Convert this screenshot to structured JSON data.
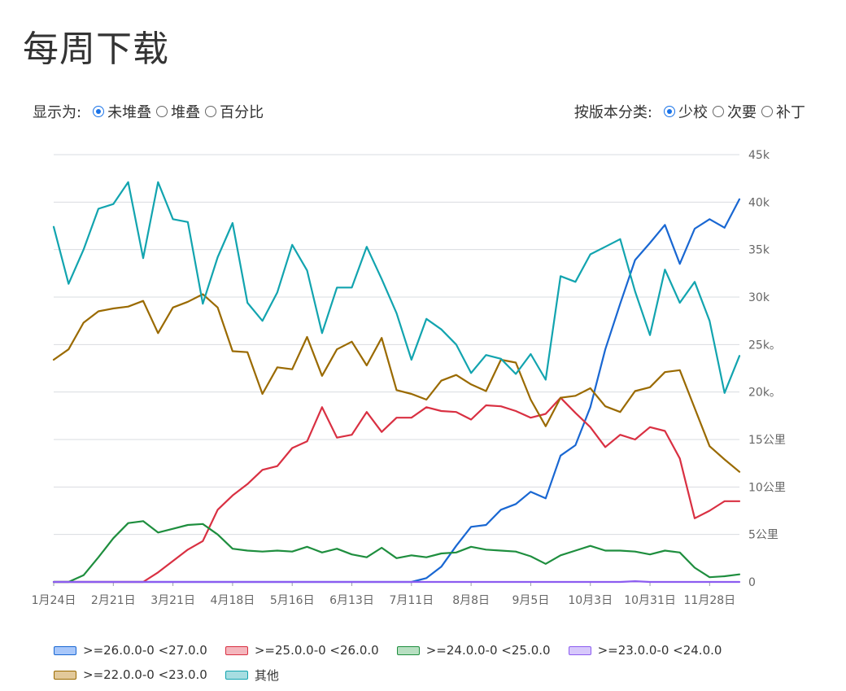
{
  "page": {
    "title": "每周下载"
  },
  "display_controls": {
    "label": "显示为:",
    "options": [
      {
        "label": "未堆叠",
        "checked": true
      },
      {
        "label": "堆叠",
        "checked": false
      },
      {
        "label": "百分比",
        "checked": false
      }
    ]
  },
  "classify_controls": {
    "label": "按版本分类:",
    "options": [
      {
        "label": "少校",
        "checked": true
      },
      {
        "label": "次要",
        "checked": false
      },
      {
        "label": "补丁",
        "checked": false
      }
    ]
  },
  "chart_data": {
    "type": "line",
    "title": "每周下载",
    "xlabel": "",
    "ylabel": "",
    "ylim": [
      0,
      45000
    ],
    "grid": true,
    "legend_position": "bottom",
    "y_tick_labels": [
      "0",
      "5公里",
      "10公里",
      "15公里",
      "20k。",
      "25k。",
      "30k",
      "35k",
      "40k",
      "45k"
    ],
    "x_tick_labels": [
      "1月24日",
      "2月21日",
      "3月21日",
      "4月18日",
      "5月16日",
      "6月13日",
      "7月11日",
      "8月8日",
      "9月5日",
      "10月3日",
      "10月31日",
      "11月28日"
    ],
    "x_tick_indices": [
      0,
      4,
      8,
      12,
      16,
      20,
      24,
      28,
      32,
      36,
      40,
      44
    ],
    "point_count": 47,
    "series": [
      {
        "name": ">=26.0.0-0 <27.0.0",
        "color": "#1967d2",
        "fill": "#a8c7fa",
        "values": [
          0,
          0,
          0,
          0,
          0,
          0,
          0,
          0,
          0,
          0,
          0,
          0,
          0,
          0,
          0,
          0,
          0,
          0,
          0,
          0,
          0,
          0,
          0,
          0,
          0,
          400,
          1600,
          3800,
          5800,
          6000,
          7600,
          8200,
          9500,
          8800,
          13300,
          14400,
          18400,
          24500,
          29300,
          33900,
          35700,
          37600,
          33500,
          37200,
          38200,
          37300,
          40300
        ]
      },
      {
        "name": ">=25.0.0-0 <26.0.0",
        "color": "#d93042",
        "fill": "#f4b6bd",
        "values": [
          0,
          0,
          0,
          0,
          0,
          0,
          0,
          1000,
          2200,
          3400,
          4300,
          7600,
          9100,
          10300,
          11800,
          12200,
          14100,
          14800,
          18400,
          15200,
          15500,
          17900,
          15800,
          17300,
          17300,
          18400,
          18000,
          17900,
          17100,
          18600,
          18500,
          18000,
          17300,
          17700,
          19400,
          17800,
          16300,
          14200,
          15500,
          15000,
          16300,
          15900,
          13000,
          6700,
          7500,
          8500,
          8500
        ]
      },
      {
        "name": ">=24.0.0-0 <25.0.0",
        "color": "#1e8e3e",
        "fill": "#b7dfc1",
        "values": [
          0,
          0,
          700,
          2600,
          4600,
          6200,
          6400,
          5200,
          5600,
          6000,
          6100,
          5000,
          3500,
          3300,
          3200,
          3300,
          3200,
          3700,
          3100,
          3500,
          2900,
          2600,
          3600,
          2500,
          2800,
          2600,
          3000,
          3100,
          3700,
          3400,
          3300,
          3200,
          2700,
          1900,
          2800,
          3300,
          3800,
          3300,
          3300,
          3200,
          2900,
          3300,
          3100,
          1500,
          500,
          600,
          800
        ]
      },
      {
        "name": ">=23.0.0-0 <24.0.0",
        "color": "#8c5cf0",
        "fill": "#d7c8fb",
        "values": [
          0,
          0,
          0,
          0,
          0,
          0,
          0,
          0,
          0,
          0,
          0,
          0,
          0,
          0,
          0,
          0,
          0,
          0,
          0,
          0,
          0,
          0,
          0,
          0,
          0,
          0,
          0,
          0,
          0,
          0,
          0,
          0,
          0,
          0,
          0,
          0,
          0,
          0,
          0,
          80,
          0,
          0,
          0,
          0,
          0,
          0,
          0
        ]
      },
      {
        "name": ">=22.0.0-0 <23.0.0",
        "color": "#9a6a00",
        "fill": "#e2c99a",
        "values": [
          23400,
          24500,
          27300,
          28500,
          28800,
          29000,
          29600,
          26200,
          28900,
          29500,
          30300,
          28900,
          24300,
          24200,
          19800,
          22600,
          22400,
          25800,
          21700,
          24500,
          25300,
          22800,
          25700,
          20200,
          19800,
          19200,
          21200,
          21800,
          20800,
          20100,
          23400,
          23100,
          19200,
          16400,
          19400,
          19600,
          20400,
          18500,
          17900,
          20100,
          20500,
          22100,
          22300,
          18300,
          14300,
          12900,
          11600
        ]
      },
      {
        "name": "其他",
        "color": "#12a4af",
        "fill": "#a6dde1",
        "values": [
          37400,
          31400,
          35000,
          39300,
          39800,
          42100,
          34100,
          42100,
          38200,
          37900,
          29300,
          34200,
          37800,
          29400,
          27500,
          30500,
          35500,
          32800,
          26200,
          31000,
          31000,
          35300,
          31900,
          28300,
          23400,
          27700,
          26600,
          25000,
          22000,
          23900,
          23500,
          21900,
          24000,
          21300,
          32200,
          31600,
          34500,
          35300,
          36100,
          30600,
          26000,
          32900,
          29400,
          31600,
          27500,
          19900,
          23800
        ]
      }
    ]
  }
}
